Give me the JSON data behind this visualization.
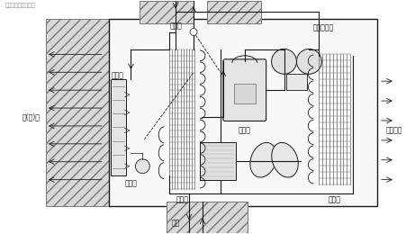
{
  "bg_color": "#ffffff",
  "fig_width": 4.52,
  "fig_height": 2.6,
  "dpi": 100,
  "labels": {
    "mao_xi_guan": "毛细管",
    "dian_ci": "电磁换向阀",
    "leng_re_feng": "冷(热)风",
    "wen_kong_qi": "温控器",
    "gan_wen_bao": "感温包",
    "zheng_fa_qi": "蒸发器",
    "ya_suo_ji": "压缩机",
    "leng_ning_qi": "冷凝器",
    "pai_xiang": "排向室外",
    "shi_nei": "室内"
  }
}
